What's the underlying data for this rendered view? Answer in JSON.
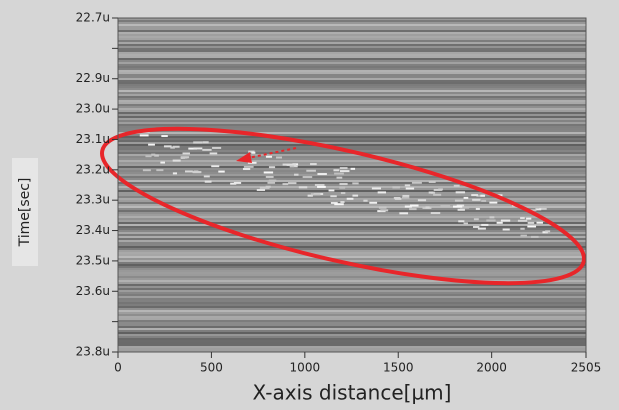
{
  "chart_data": {
    "type": "heatmap",
    "xlabel": "X-axis distance[µm]",
    "ylabel": "Time[sec]",
    "xlim": [
      0,
      2505
    ],
    "xticks": [
      0,
      500,
      1000,
      1500,
      2000,
      2505
    ],
    "ylim": [
      22.7,
      23.8
    ],
    "y_inverted": true,
    "yticks": [
      {
        "value": 22.7,
        "label": "22.7u"
      },
      {
        "value": 22.8,
        "label": null
      },
      {
        "value": 22.9,
        "label": "22.9u"
      },
      {
        "value": 23.0,
        "label": "23.0u"
      },
      {
        "value": 23.1,
        "label": "23.1u"
      },
      {
        "value": 23.2,
        "label": "23.2u"
      },
      {
        "value": 23.3,
        "label": "23.3u"
      },
      {
        "value": 23.4,
        "label": "23.4u"
      },
      {
        "value": 23.5,
        "label": "23.5u"
      },
      {
        "value": 23.6,
        "label": "23.6u"
      },
      {
        "value": 23.7,
        "label": null
      },
      {
        "value": 23.8,
        "label": "23.8u"
      }
    ]
  }
}
